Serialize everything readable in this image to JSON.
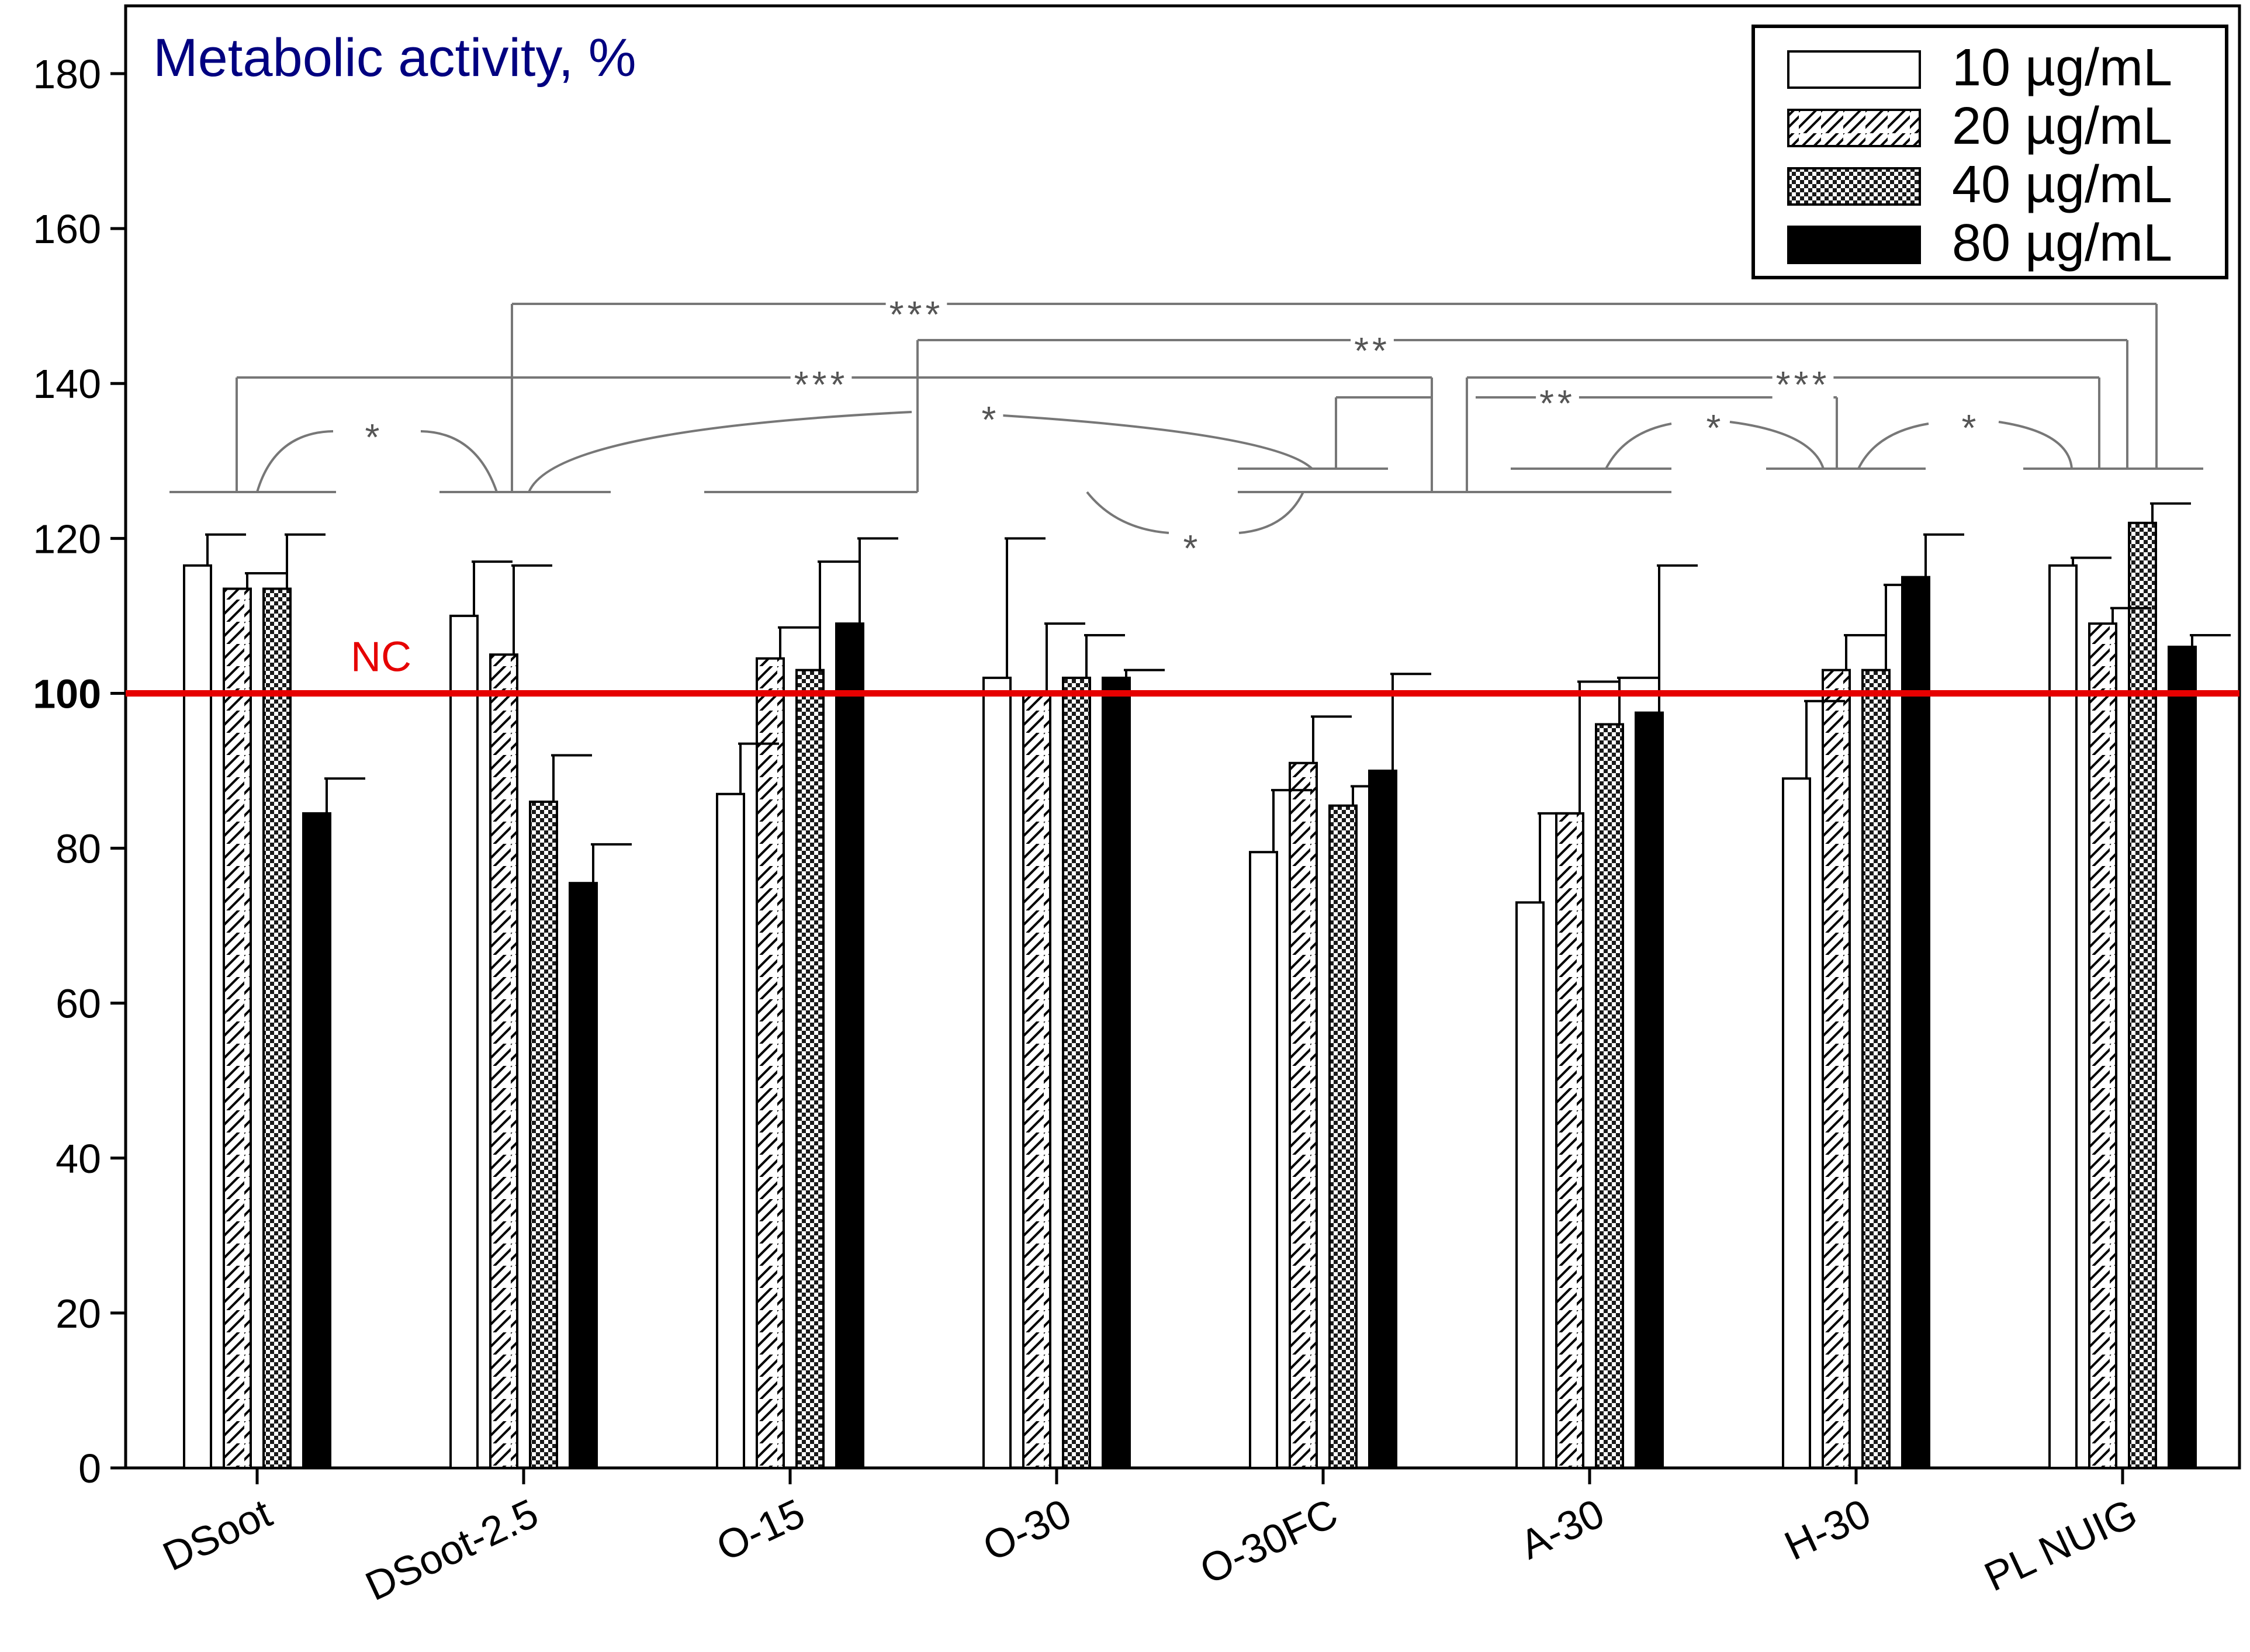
{
  "chart_data": {
    "type": "bar",
    "title": "Metabolic activity, %",
    "xlabel": "",
    "ylabel": "",
    "ylim": [
      0,
      188
    ],
    "yticks": [
      0,
      20,
      40,
      60,
      80,
      100,
      120,
      140,
      160,
      180
    ],
    "categories": [
      "DSoot",
      "DSoot-2.5",
      "O-15",
      "O-30",
      "O-30FC",
      "A-30",
      "H-30",
      "PL NUIG"
    ],
    "series": [
      {
        "name": "10 µg/mL",
        "pattern": "open",
        "values": [
          116.5,
          110,
          87,
          102,
          79.5,
          73,
          89,
          116.5
        ],
        "errors": [
          4,
          7,
          6.5,
          18,
          8,
          11.5,
          10,
          1
        ]
      },
      {
        "name": "20 µg/mL",
        "pattern": "hatch",
        "values": [
          113.5,
          105,
          104.5,
          100,
          91,
          84.5,
          103,
          109
        ],
        "errors": [
          2,
          11.5,
          4,
          9,
          6,
          17,
          4.5,
          2
        ]
      },
      {
        "name": "40 µg/mL",
        "pattern": "checker",
        "values": [
          113.5,
          86,
          103,
          102,
          85.5,
          96,
          103,
          122
        ],
        "errors": [
          7,
          6,
          14,
          5.5,
          2.5,
          6,
          11,
          2.5
        ]
      },
      {
        "name": "80 µg/mL",
        "pattern": "solid",
        "values": [
          84.5,
          75.5,
          109,
          102,
          90,
          97.5,
          115,
          106
        ],
        "errors": [
          4.5,
          5,
          11,
          1,
          12.5,
          19,
          5.5,
          1.5
        ]
      }
    ],
    "reference_line": {
      "label": "NC",
      "value": 100,
      "color": "#e60000"
    },
    "significance_markers": [
      "*",
      "***",
      "***",
      "**",
      "*",
      "**",
      "***",
      "*",
      "*",
      "*"
    ],
    "colors": {
      "title": "#000080",
      "bar_fill": "#000000",
      "annotation": "#777777"
    }
  }
}
